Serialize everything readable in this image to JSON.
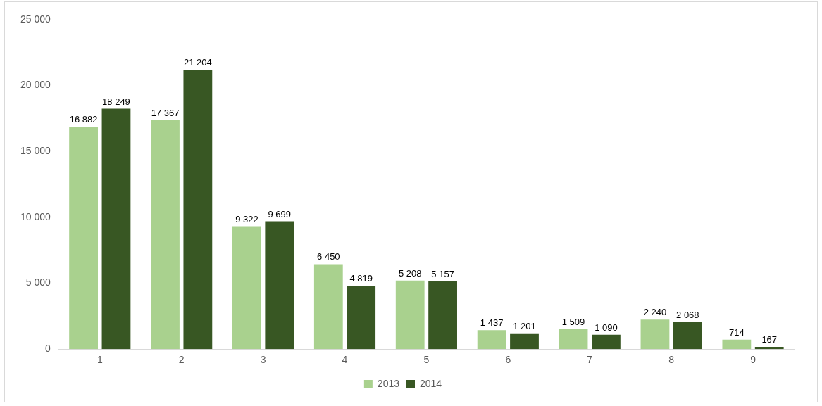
{
  "chart_data": {
    "type": "bar",
    "categories": [
      "1",
      "2",
      "3",
      "4",
      "5",
      "6",
      "7",
      "8",
      "9"
    ],
    "series": [
      {
        "name": "2013",
        "color": "#a9d18e",
        "values": [
          16882,
          17367,
          9322,
          6450,
          5208,
          1437,
          1509,
          2240,
          714
        ],
        "value_labels": [
          "16 882",
          "17 367",
          "9 322",
          "6 450",
          "5 208",
          "1 437",
          "1 509",
          "2 240",
          "714"
        ]
      },
      {
        "name": "2014",
        "color": "#385723",
        "values": [
          18249,
          21204,
          9699,
          4819,
          5157,
          1201,
          1090,
          2068,
          167
        ],
        "value_labels": [
          "18 249",
          "21 204",
          "9 699",
          "4 819",
          "5 157",
          "1 201",
          "1 090",
          "2 068",
          "167"
        ]
      }
    ],
    "ylim": [
      0,
      25000
    ],
    "yticks": [
      {
        "value": 0,
        "label": "0"
      },
      {
        "value": 5000,
        "label": "5 000"
      },
      {
        "value": 10000,
        "label": "10 000"
      },
      {
        "value": 15000,
        "label": "15 000"
      },
      {
        "value": 20000,
        "label": "20 000"
      },
      {
        "value": 25000,
        "label": "25 000"
      }
    ],
    "grid": false,
    "legend": "bottom"
  }
}
